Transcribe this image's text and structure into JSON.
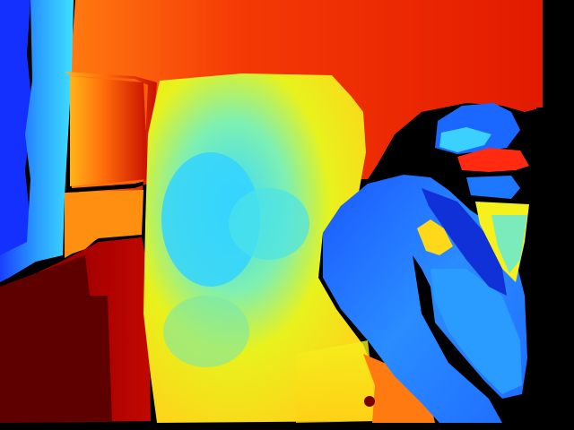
{
  "image": {
    "kind": "depth-map",
    "colormap": "jet",
    "colors": {
      "near": "#00008f",
      "blue": "#1a66ff",
      "cyan": "#39d8ff",
      "yellow": "#ffe629",
      "orange": "#ff8a10",
      "red": "#e62000",
      "far": "#5a0000",
      "invalid": "#000000"
    }
  }
}
